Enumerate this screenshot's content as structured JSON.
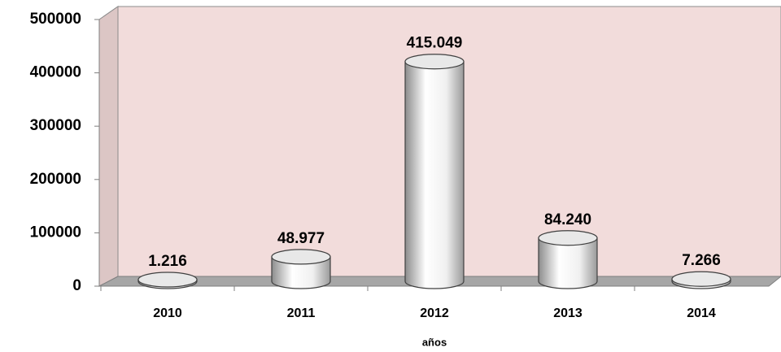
{
  "chart_data": {
    "type": "bar",
    "x_label": "años",
    "categories": [
      "2010",
      "2011",
      "2012",
      "2013",
      "2014"
    ],
    "values": [
      1216,
      48977,
      415049,
      84240,
      7266
    ],
    "value_labels": [
      "1.216",
      "48.977",
      "415.049",
      "84.240",
      "7.266"
    ],
    "color": "#ffffff",
    "ylim": [
      0,
      500000
    ],
    "yticks": [
      0,
      100000,
      200000,
      300000,
      400000,
      500000
    ]
  }
}
